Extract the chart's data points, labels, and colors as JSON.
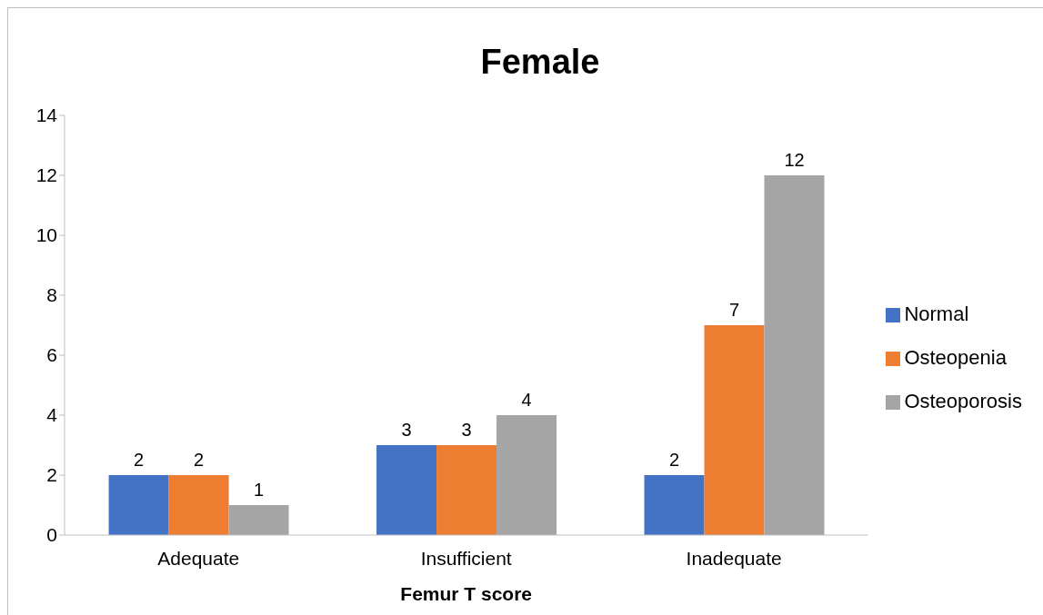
{
  "chart_data": {
    "type": "bar",
    "title": "Female",
    "xlabel": "Femur T score",
    "categories": [
      "Adequate",
      "Insufficient",
      "Inadequate"
    ],
    "series": [
      {
        "name": "Normal",
        "color": "#4472c4",
        "values": [
          2,
          3,
          2
        ]
      },
      {
        "name": "Osteopenia",
        "color": "#ed7d31",
        "values": [
          2,
          3,
          7
        ]
      },
      {
        "name": "Osteoporosis",
        "color": "#a5a5a5",
        "values": [
          1,
          4,
          12
        ]
      }
    ],
    "ylim": [
      0,
      14
    ],
    "yticks": [
      0,
      2,
      4,
      6,
      8,
      10,
      12,
      14
    ],
    "grid": false,
    "legend": "right",
    "data_labels": true
  }
}
